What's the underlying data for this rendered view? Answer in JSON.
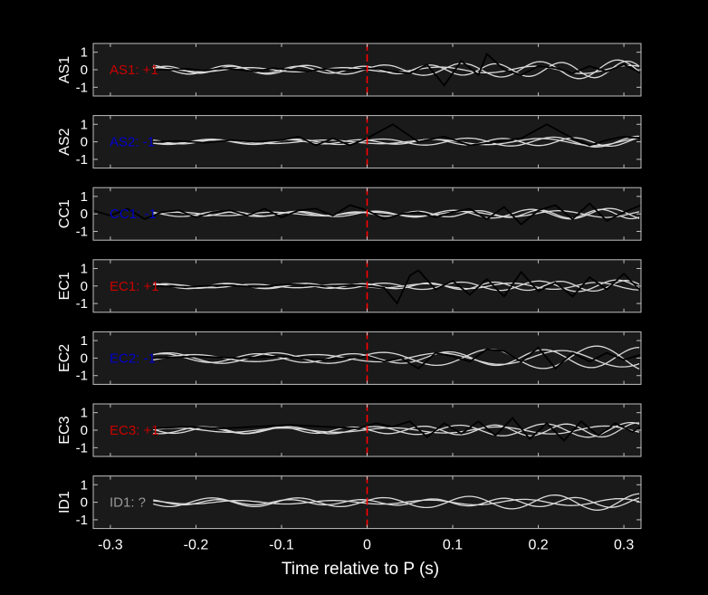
{
  "chart_data": {
    "type": "line",
    "xlabel": "Time relative to P (s)",
    "xlim": [
      -0.32,
      0.32
    ],
    "ylim": [
      -1.5,
      1.5
    ],
    "xticks": [
      -0.3,
      -0.2,
      -0.1,
      0,
      0.1,
      0.2,
      0.3
    ],
    "xtick_labels": [
      "-0.3",
      "-0.2",
      "-0.1",
      "0",
      "0.1",
      "0.2",
      "0.3"
    ],
    "yticks": [
      -1,
      0,
      1
    ],
    "ytick_labels": [
      "-1",
      "0",
      "1"
    ],
    "marker_line": {
      "x": 0,
      "color": "#ff0000",
      "style": "dashed"
    },
    "colors": {
      "background": "#000000",
      "axes_background": "#1a1a1a",
      "axes_frame": "#bfbfbf",
      "text": "#ffffff",
      "trace_highlight": "#000000",
      "trace_others": "#d9d9d9",
      "polarity_positive": "#cc0000",
      "polarity_negative": "#0000cc",
      "polarity_unknown": "#999999"
    },
    "panels": [
      {
        "ylabel": "AS1",
        "annotation": "AS1: +1",
        "annotation_color": "#cc0000",
        "highlight_x": [
          -0.25,
          -0.23,
          -0.21,
          -0.19,
          -0.17,
          -0.15,
          -0.13,
          -0.11,
          -0.09,
          -0.07,
          -0.05,
          -0.03,
          -0.01,
          0.01,
          0.03,
          0.05,
          0.07,
          0.09,
          0.11,
          0.13,
          0.14,
          0.16,
          0.18,
          0.2,
          0.22,
          0.24,
          0.26,
          0.28,
          0.3,
          0.32
        ],
        "highlight_y": [
          0,
          0,
          0.05,
          -0.05,
          0.1,
          0,
          -0.1,
          0.1,
          0,
          -0.1,
          0.05,
          0,
          0,
          0.1,
          -0.1,
          -0.2,
          0.3,
          -0.9,
          0.5,
          -0.3,
          0.9,
          0,
          -0.3,
          0.2,
          0.1,
          -0.2,
          0.2,
          -0.1,
          0.3,
          -0.2
        ],
        "others": [
          {
            "amp": 0.25,
            "freq": 11,
            "phase": 0.2,
            "growth": 1.4
          },
          {
            "amp": 0.2,
            "freq": 13,
            "phase": 1.9,
            "growth": 1.6
          },
          {
            "amp": 0.12,
            "freq": 9,
            "phase": 3.1,
            "growth": 1.1
          }
        ]
      },
      {
        "ylabel": "AS2",
        "annotation": "AS2: -1",
        "annotation_color": "#0000cc",
        "highlight_x": [
          -0.25,
          -0.22,
          -0.19,
          -0.16,
          -0.13,
          -0.1,
          -0.08,
          -0.06,
          -0.04,
          -0.02,
          0,
          0.03,
          0.06,
          0.09,
          0.12,
          0.15,
          0.18,
          0.21,
          0.24,
          0.26,
          0.28,
          0.3,
          0.32
        ],
        "highlight_y": [
          0,
          0.05,
          -0.05,
          0.1,
          0,
          0.1,
          0.3,
          -0.2,
          0.2,
          -0.2,
          0.2,
          1.0,
          0,
          0.3,
          -0.2,
          0,
          0.2,
          1.0,
          0.2,
          -0.2,
          0.1,
          0.3,
          0.2
        ],
        "others": [
          {
            "amp": 0.15,
            "freq": 10,
            "phase": 0.5,
            "growth": 1.2
          },
          {
            "amp": 0.12,
            "freq": 12,
            "phase": 2.2,
            "growth": 1.3
          },
          {
            "amp": 0.1,
            "freq": 8,
            "phase": 4.0,
            "growth": 1.5
          }
        ]
      },
      {
        "ylabel": "CC1",
        "annotation": "CC1: -1",
        "annotation_color": "#0000cc",
        "highlight_x": [
          -0.32,
          -0.3,
          -0.28,
          -0.26,
          -0.24,
          -0.22,
          -0.2,
          -0.18,
          -0.16,
          -0.14,
          -0.12,
          -0.1,
          -0.08,
          -0.06,
          -0.04,
          -0.02,
          0,
          0.02,
          0.04,
          0.06,
          0.08,
          0.1,
          0.12,
          0.14,
          0.16,
          0.18,
          0.2,
          0.22,
          0.24,
          0.26,
          0.28,
          0.3,
          0.32
        ],
        "highlight_y": [
          0.2,
          -0.1,
          0.3,
          -0.3,
          0.1,
          0.2,
          -0.2,
          0.1,
          0.2,
          -0.1,
          0.3,
          -0.2,
          0.2,
          0.3,
          -0.1,
          0.5,
          0.2,
          -0.3,
          0,
          0.1,
          -0.2,
          0.1,
          0.3,
          -0.3,
          0.4,
          -0.6,
          0.2,
          0.5,
          -0.3,
          0.6,
          -0.4,
          0.1,
          0.5
        ],
        "others": [
          {
            "amp": 0.15,
            "freq": 11,
            "phase": 0.9,
            "growth": 1.3
          },
          {
            "amp": 0.12,
            "freq": 14,
            "phase": 2.7,
            "growth": 1.4
          },
          {
            "amp": 0.1,
            "freq": 9,
            "phase": 1.5,
            "growth": 1.2
          }
        ]
      },
      {
        "ylabel": "EC1",
        "annotation": "EC1: +1",
        "annotation_color": "#cc0000",
        "highlight_x": [
          -0.25,
          -0.21,
          -0.17,
          -0.13,
          -0.09,
          -0.05,
          -0.01,
          0.02,
          0.035,
          0.05,
          0.06,
          0.08,
          0.1,
          0.12,
          0.14,
          0.16,
          0.18,
          0.2,
          0.22,
          0.24,
          0.26,
          0.28,
          0.3,
          0.32
        ],
        "highlight_y": [
          0,
          -0.05,
          0.05,
          -0.05,
          0.1,
          0,
          0.05,
          -0.1,
          -1.0,
          0.6,
          0.9,
          -0.2,
          0.3,
          -0.5,
          0.4,
          -0.6,
          0.8,
          -0.3,
          0.2,
          -0.6,
          0.5,
          -0.2,
          0.7,
          -0.3
        ],
        "others": [
          {
            "amp": 0.15,
            "freq": 11,
            "phase": 0.3,
            "growth": 1.5
          },
          {
            "amp": 0.13,
            "freq": 13,
            "phase": 2.0,
            "growth": 1.6
          },
          {
            "amp": 0.1,
            "freq": 10,
            "phase": 3.6,
            "growth": 1.3
          }
        ]
      },
      {
        "ylabel": "EC2",
        "annotation": "EC2: -1",
        "annotation_color": "#0000cc",
        "highlight_x": [
          -0.25,
          -0.2,
          -0.15,
          -0.1,
          -0.05,
          0,
          0.02,
          0.04,
          0.06,
          0.08,
          0.1,
          0.12,
          0.14,
          0.16,
          0.18,
          0.2,
          0.22,
          0.24,
          0.26,
          0.28,
          0.3,
          0.32
        ],
        "highlight_y": [
          0,
          0.1,
          0,
          0.1,
          -0.1,
          0.1,
          -0.2,
          0,
          -0.6,
          0.3,
          0.1,
          -0.2,
          0.5,
          0.4,
          -0.2,
          0.6,
          -0.6,
          0.3,
          -0.2,
          0.3,
          -0.1,
          0.2
        ],
        "others": [
          {
            "amp": 0.3,
            "freq": 8,
            "phase": 0.7,
            "growth": 1.6
          },
          {
            "amp": 0.25,
            "freq": 9,
            "phase": 2.5,
            "growth": 1.5
          },
          {
            "amp": 0.2,
            "freq": 7,
            "phase": 4.2,
            "growth": 1.7
          }
        ]
      },
      {
        "ylabel": "EC3",
        "annotation": "EC3: +1",
        "annotation_color": "#cc0000",
        "highlight_x": [
          -0.25,
          -0.21,
          -0.17,
          -0.13,
          -0.09,
          -0.05,
          -0.01,
          0.01,
          0.03,
          0.05,
          0.07,
          0.09,
          0.11,
          0.13,
          0.15,
          0.17,
          0.19,
          0.21,
          0.23,
          0.25,
          0.27,
          0.29,
          0.31,
          0.32
        ],
        "highlight_y": [
          0.1,
          0.2,
          0.1,
          0.2,
          0.3,
          0.2,
          0.1,
          0.4,
          0.2,
          0.5,
          -0.4,
          0.4,
          -0.2,
          0.5,
          -0.3,
          0.7,
          -0.5,
          0.4,
          -0.6,
          0.5,
          -0.3,
          0.4,
          -0.1,
          0.2
        ],
        "others": [
          {
            "amp": 0.2,
            "freq": 10,
            "phase": 1.1,
            "growth": 1.3
          },
          {
            "amp": 0.18,
            "freq": 12,
            "phase": 2.9,
            "growth": 1.4
          },
          {
            "amp": 0.12,
            "freq": 8,
            "phase": 0.2,
            "growth": 1.2
          }
        ]
      },
      {
        "ylabel": "ID1",
        "annotation": "ID1: ?",
        "annotation_color": "#999999",
        "highlight_x": [],
        "highlight_y": [],
        "others": [
          {
            "amp": 0.25,
            "freq": 10,
            "phase": 0.4,
            "growth": 1.0
          },
          {
            "amp": 0.15,
            "freq": 12,
            "phase": 2.1,
            "growth": 1.1
          },
          {
            "amp": 0.1,
            "freq": 9,
            "phase": 3.8,
            "growth": 1.2
          }
        ]
      }
    ]
  }
}
